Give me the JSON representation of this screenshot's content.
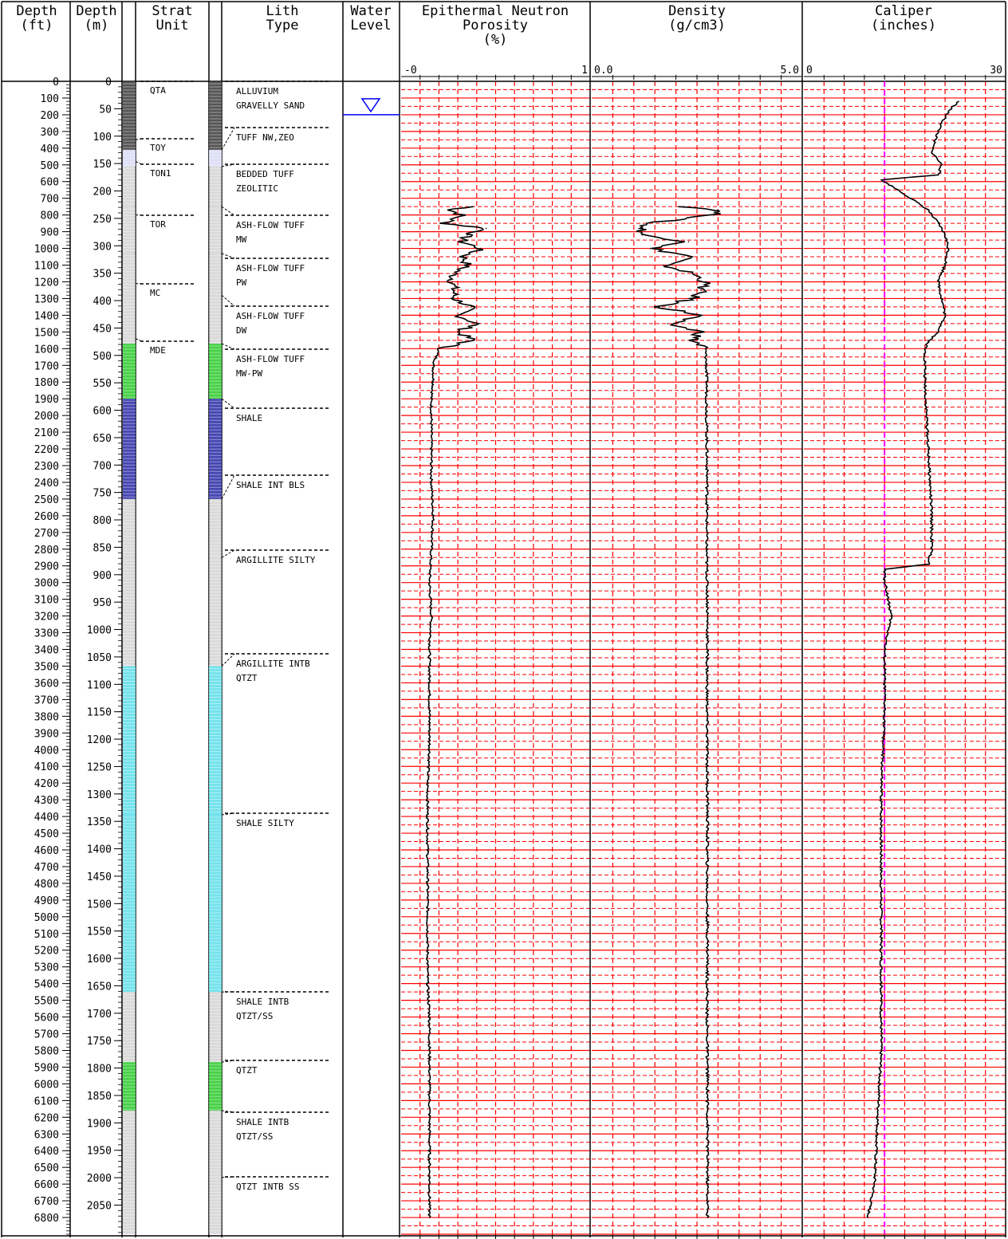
{
  "columns": {
    "depth_ft": [
      "Depth",
      "(ft)"
    ],
    "depth_m": [
      "Depth",
      "(m)"
    ],
    "strat": [
      "Strat",
      "Unit"
    ],
    "lith": [
      "Lith",
      "Type"
    ],
    "water": [
      "Water",
      "Level"
    ]
  },
  "colors": {
    "grid_red": "#ff0000",
    "caliper_ref": "#ff00ff",
    "water_blue": "#0000ff",
    "lith_cyan": "#66e0ea",
    "lith_green": "#33cc33",
    "lith_blue": "#3333aa",
    "lith_gray": "#bbbbbb"
  },
  "strat_units": [
    {
      "label": "QTA",
      "top_ft": 0
    },
    {
      "label": "TOY",
      "top_ft": 350
    },
    {
      "label": "TON1",
      "top_ft": 480
    },
    {
      "label": "TOR",
      "top_ft": 800
    },
    {
      "label": "MC",
      "top_ft": 1210
    },
    {
      "label": "MDE",
      "top_ft": 1540
    }
  ],
  "lith_units": [
    {
      "label": [
        "ALLUVIUM",
        "GRAVELLY SAND"
      ],
      "top_ft": 0,
      "base_ft": 410,
      "pattern": "dark"
    },
    {
      "label": [
        "TUFF NW,ZEO"
      ],
      "top_ft": 410,
      "base_ft": 510,
      "pattern": "blue-dot"
    },
    {
      "label": [
        "BEDDED TUFF",
        "ZEOLITIC"
      ],
      "top_ft": 510,
      "base_ft": 750,
      "pattern": "gray"
    },
    {
      "label": [
        "ASH-FLOW TUFF",
        "MW"
      ],
      "top_ft": 750,
      "base_ft": 1030,
      "pattern": "gray"
    },
    {
      "label": [
        "ASH-FLOW TUFF",
        "PW"
      ],
      "top_ft": 1030,
      "base_ft": 1280,
      "pattern": "gray"
    },
    {
      "label": [
        "ASH-FLOW TUFF",
        "DW"
      ],
      "top_ft": 1280,
      "base_ft": 1570,
      "pattern": "gray"
    },
    {
      "label": [
        "ASH-FLOW TUFF",
        "MW-PW"
      ],
      "top_ft": 1570,
      "base_ft": 1900,
      "pattern": "green"
    },
    {
      "label": [
        "SHALE"
      ],
      "top_ft": 1900,
      "base_ft": 2500,
      "pattern": "blue"
    },
    {
      "label": [
        "SHALE INT BLS"
      ],
      "top_ft": 2500,
      "base_ft": 2850,
      "pattern": "gray"
    },
    {
      "label": [
        "ARGILLITE SILTY"
      ],
      "top_ft": 2850,
      "base_ft": 3500,
      "pattern": "gray"
    },
    {
      "label": [
        "ARGILLITE INTB",
        "QTZT"
      ],
      "top_ft": 3500,
      "base_ft": 4390,
      "pattern": "cyan"
    },
    {
      "label": [
        "SHALE SILTY"
      ],
      "top_ft": 4390,
      "base_ft": 5450,
      "pattern": "cyan"
    },
    {
      "label": [
        "SHALE INTB",
        "QTZT/SS"
      ],
      "top_ft": 5450,
      "base_ft": 5870,
      "pattern": "gray"
    },
    {
      "label": [
        "QTZT"
      ],
      "top_ft": 5870,
      "base_ft": 6160,
      "pattern": "green"
    },
    {
      "label": [
        "SHALE INTB",
        "QTZT/SS"
      ],
      "top_ft": 6160,
      "base_ft": 6560,
      "pattern": "gray"
    },
    {
      "label": [
        "QTZT INTB SS"
      ],
      "top_ft": 6560,
      "base_ft": 6900,
      "pattern": "gray"
    }
  ],
  "chart_data": {
    "type": "line",
    "depth_axis": {
      "unit": "ft",
      "range": [
        0,
        6900
      ],
      "ticks_ft": [
        0,
        100,
        200,
        300,
        400,
        500,
        600,
        700,
        800,
        900,
        1000,
        1100,
        1200,
        1300,
        1400,
        1500,
        1600,
        1700,
        1800,
        1900,
        2000,
        2100,
        2200,
        2300,
        2400,
        2500,
        2600,
        2700,
        2800,
        2900,
        3000,
        3100,
        3200,
        3300,
        3400,
        3500,
        3600,
        3700,
        3800,
        3900,
        4000,
        4100,
        4200,
        4300,
        4400,
        4500,
        4600,
        4700,
        4800,
        4900,
        5000,
        5100,
        5200,
        5300,
        5400,
        5500,
        5600,
        5700,
        5800,
        5900,
        6000,
        6100,
        6200,
        6300,
        6400,
        6500,
        6600,
        6700,
        6800
      ],
      "ticks_m": [
        0,
        50,
        100,
        150,
        200,
        250,
        300,
        350,
        400,
        450,
        500,
        550,
        600,
        650,
        700,
        750,
        800,
        850,
        900,
        950,
        1000,
        1050,
        1100,
        1150,
        1200,
        1250,
        1300,
        1350,
        1400,
        1450,
        1500,
        1550,
        1600,
        1650,
        1700,
        1750,
        1800,
        1850,
        1900,
        1950,
        2000,
        2050
      ]
    },
    "water_level_ft": 200,
    "tracks": [
      {
        "name": [
          "Epithermal Neutron",
          "Porosity",
          "(%)"
        ],
        "min_label": "-0",
        "max_label": "1",
        "range": [
          0,
          1
        ],
        "depth_ft": [
          750,
          770,
          800,
          850,
          880,
          920,
          960,
          1000,
          1050,
          1100,
          1150,
          1200,
          1250,
          1300,
          1350,
          1400,
          1450,
          1500,
          1550,
          1600,
          1700,
          1800,
          1900,
          2000,
          2200,
          2400,
          2600,
          2800,
          3000,
          3200,
          3400,
          3600,
          3800,
          4000,
          4200,
          4400,
          4600,
          4800,
          5000,
          5200,
          5400,
          5600,
          5800,
          6000,
          6200,
          6400,
          6600,
          6800
        ],
        "values": [
          0.38,
          0.26,
          0.32,
          0.23,
          0.45,
          0.35,
          0.32,
          0.42,
          0.33,
          0.35,
          0.28,
          0.27,
          0.28,
          0.28,
          0.37,
          0.3,
          0.4,
          0.3,
          0.38,
          0.2,
          0.17,
          0.17,
          0.16,
          0.16,
          0.16,
          0.16,
          0.17,
          0.16,
          0.15,
          0.16,
          0.15,
          0.15,
          0.15,
          0.15,
          0.14,
          0.14,
          0.14,
          0.14,
          0.14,
          0.14,
          0.14,
          0.15,
          0.15,
          0.15,
          0.15,
          0.15,
          0.15,
          0.15
        ]
      },
      {
        "name": [
          "Density",
          "(g/cm3)"
        ],
        "min_label": "0.0",
        "max_label": "5.0",
        "range": [
          0,
          5
        ],
        "depth_ft": [
          750,
          770,
          800,
          850,
          880,
          920,
          960,
          1000,
          1050,
          1100,
          1150,
          1200,
          1250,
          1300,
          1350,
          1400,
          1450,
          1500,
          1550,
          1600,
          1700,
          1800,
          2000,
          2400,
          2800,
          3200,
          3600,
          4000,
          4400,
          4800,
          5200,
          5600,
          6000,
          6400,
          6800
        ],
        "values": [
          2.2,
          3.0,
          2.9,
          1.3,
          1.2,
          1.2,
          2.3,
          1.4,
          2.4,
          1.7,
          2.4,
          2.7,
          2.6,
          2.4,
          1.6,
          2.6,
          1.8,
          2.6,
          2.4,
          2.7,
          2.72,
          2.73,
          2.73,
          2.74,
          2.73,
          2.75,
          2.74,
          2.74,
          2.75,
          2.74,
          2.75,
          2.74,
          2.75,
          2.75,
          2.75
        ]
      },
      {
        "name": [
          "Caliper",
          "(inches)"
        ],
        "min_label": "0",
        "max_label": "30",
        "range": [
          0,
          30
        ],
        "reference_value": 12,
        "depth_ft": [
          120,
          180,
          250,
          350,
          420,
          500,
          560,
          590,
          650,
          770,
          800,
          850,
          920,
          1000,
          1100,
          1200,
          1300,
          1400,
          1500,
          1560,
          1600,
          1800,
          2200,
          2600,
          2800,
          2890,
          2920,
          2980,
          3200,
          3400,
          3800,
          4200,
          4600,
          5000,
          5400,
          5800,
          6200,
          6600,
          6800
        ],
        "values": [
          23,
          21.5,
          20.5,
          19.5,
          19,
          20.5,
          20,
          11.5,
          14,
          18.5,
          19,
          20,
          21,
          21.5,
          21,
          20,
          20.5,
          21,
          20,
          18.5,
          18,
          18,
          18.5,
          19,
          19,
          18.5,
          12,
          12,
          13,
          12,
          12,
          11.5,
          11.5,
          11.5,
          11.5,
          11.5,
          11,
          10.5,
          9.5
        ]
      }
    ]
  }
}
